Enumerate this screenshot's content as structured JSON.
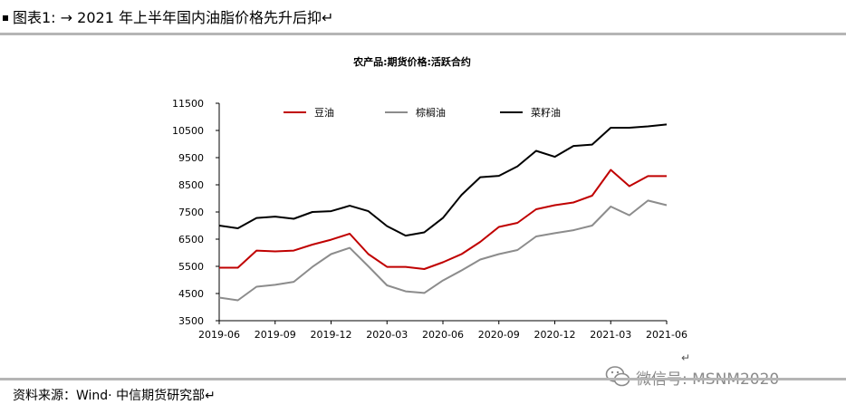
{
  "header": {
    "title": "图表1: → 2021 年上半年国内油脂价格先升后抑↵"
  },
  "footer": {
    "source": "资料来源：Wind· 中信期货研究部↵",
    "watermark": "微信号: MSNM2020"
  },
  "chart_data": {
    "type": "line",
    "title": "农产品:期货价格:活跃合约",
    "xlabel": "",
    "ylabel": "",
    "ylim": [
      3500,
      11500
    ],
    "yticks": [
      3500,
      4500,
      5500,
      6500,
      7500,
      8500,
      9500,
      10500,
      11500
    ],
    "x_tick_labels": [
      "2019-06",
      "2019-09",
      "2019-12",
      "2020-03",
      "2020-06",
      "2020-09",
      "2020-12",
      "2021-03",
      "2021-06"
    ],
    "x": [
      "2019-06",
      "2019-07",
      "2019-08",
      "2019-09",
      "2019-10",
      "2019-11",
      "2019-12",
      "2020-01",
      "2020-02",
      "2020-03",
      "2020-04",
      "2020-05",
      "2020-06",
      "2020-07",
      "2020-08",
      "2020-09",
      "2020-10",
      "2020-11",
      "2020-12",
      "2021-01",
      "2021-02",
      "2021-03",
      "2021-04",
      "2021-05",
      "2021-06"
    ],
    "grid": false,
    "legend_position": "top",
    "series": [
      {
        "name": "豆油",
        "color": "#c00000",
        "values": [
          5450,
          5450,
          6080,
          6050,
          6080,
          6300,
          6480,
          6700,
          5950,
          5480,
          5480,
          5400,
          5650,
          5950,
          6400,
          6950,
          7100,
          7600,
          7750,
          7850,
          8100,
          9050,
          8450,
          8820,
          8820
        ]
      },
      {
        "name": "棕榈油",
        "color": "#8c8c8c",
        "values": [
          4350,
          4250,
          4750,
          4820,
          4930,
          5480,
          5950,
          6180,
          5500,
          4800,
          4580,
          4520,
          4980,
          5350,
          5750,
          5950,
          6100,
          6600,
          6720,
          6830,
          7000,
          7700,
          7380,
          7920,
          7750
        ]
      },
      {
        "name": "菜籽油",
        "color": "#000000",
        "values": [
          7000,
          6900,
          7280,
          7330,
          7250,
          7500,
          7530,
          7730,
          7530,
          6980,
          6630,
          6750,
          7280,
          8130,
          8780,
          8830,
          9180,
          9750,
          9530,
          9930,
          9980,
          10600,
          10600,
          10650,
          10720
        ]
      }
    ]
  }
}
